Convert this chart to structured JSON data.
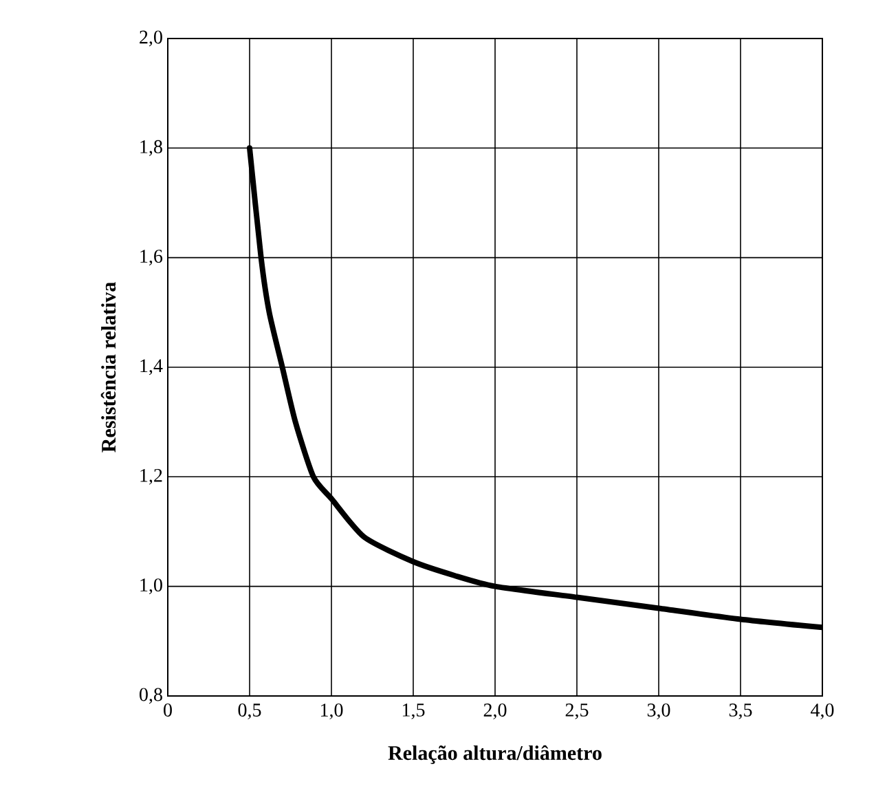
{
  "chart_data": {
    "type": "line",
    "xlabel": "Relação altura/diâmetro",
    "ylabel": "Resistência relativa",
    "x": [
      0.5,
      0.57,
      0.62,
      0.7,
      0.78,
      0.89,
      1.0,
      1.2,
      1.5,
      1.75,
      2.0,
      2.5,
      3.0,
      3.5,
      4.0
    ],
    "values": [
      1.8,
      1.6,
      1.5,
      1.4,
      1.3,
      1.2,
      1.16,
      1.09,
      1.045,
      1.02,
      1.0,
      0.98,
      0.96,
      0.94,
      0.925
    ],
    "color": "#000000",
    "line_style": "solid",
    "marker": "none",
    "grid": true,
    "xlim": [
      0,
      4
    ],
    "ylim": [
      0.8,
      2.0
    ],
    "xticks": [
      0,
      {
        "value": 0.5,
        "label": "0,5"
      },
      {
        "value": 1.0,
        "label": "1,0"
      },
      {
        "value": 1.5,
        "label": "1,5"
      },
      {
        "value": 2.0,
        "label": "2,0"
      },
      {
        "value": 2.5,
        "label": "2,5"
      },
      {
        "value": 3.0,
        "label": "3,0"
      },
      {
        "value": 3.5,
        "label": "3,5"
      },
      {
        "value": 4.0,
        "label": "4,0"
      }
    ],
    "yticks": [
      {
        "value": 0.8,
        "label": "0,8"
      },
      {
        "value": 1.0,
        "label": "1,0"
      },
      {
        "value": 1.2,
        "label": "1,2"
      },
      {
        "value": 1.4,
        "label": "1,4"
      },
      {
        "value": 1.6,
        "label": "1,6"
      },
      {
        "value": 1.8,
        "label": "1,8"
      },
      {
        "value": 2.0,
        "label": "2,0"
      }
    ]
  }
}
